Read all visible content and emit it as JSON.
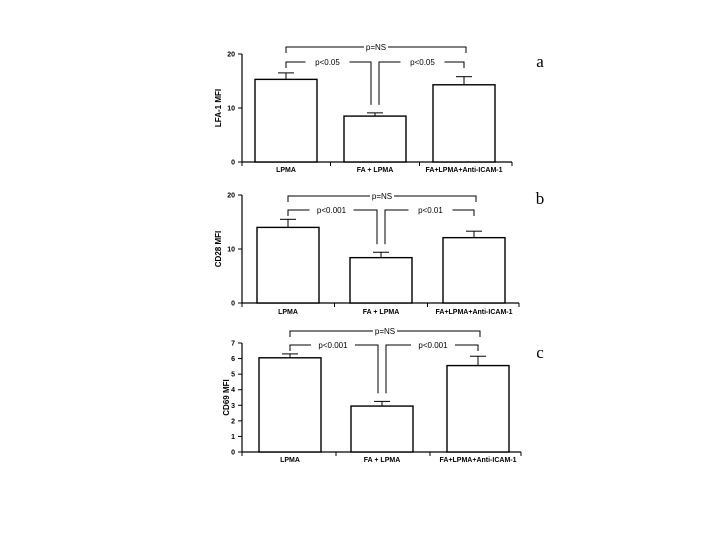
{
  "chart_data": [
    {
      "type": "bar",
      "panel_label": "a",
      "ylabel": "LFA-1 MFI",
      "categories": [
        "LPMA",
        "FA + LPMA",
        "FA+LPMA+Anti-ICAM-1"
      ],
      "values": [
        15.3,
        8.5,
        14.3
      ],
      "errors": [
        1.2,
        0.6,
        1.5
      ],
      "ylim": [
        0,
        20
      ],
      "yticks": [
        "0",
        "10",
        "20"
      ],
      "yticks_values": [
        0,
        10,
        20
      ],
      "significance": [
        {
          "label": "p<0.05",
          "from": 0,
          "to": 1
        },
        {
          "label": "p<0.05",
          "from": 1,
          "to": 2
        },
        {
          "label": "p=NS",
          "from": 0,
          "to": 2
        }
      ]
    },
    {
      "type": "bar",
      "panel_label": "b",
      "ylabel": "CD28 MFI",
      "categories": [
        "LPMA",
        "FA + LPMA",
        "FA+LPMA+Anti-ICAM-1"
      ],
      "values": [
        14.0,
        8.4,
        12.1
      ],
      "errors": [
        1.5,
        1.0,
        1.2
      ],
      "ylim": [
        0,
        20
      ],
      "yticks": [
        "0",
        "10",
        "20"
      ],
      "yticks_values": [
        0,
        10,
        20
      ],
      "significance": [
        {
          "label": "p<0.001",
          "from": 0,
          "to": 1
        },
        {
          "label": "p<0.01",
          "from": 1,
          "to": 2
        },
        {
          "label": "p=NS",
          "from": 0,
          "to": 2
        }
      ]
    },
    {
      "type": "bar",
      "panel_label": "c",
      "ylabel": "CD69 MFI",
      "categories": [
        "LPMA",
        "FA + LPMA",
        "FA+LPMA+Anti-ICAM-1"
      ],
      "values": [
        6.05,
        2.95,
        5.55
      ],
      "errors": [
        0.25,
        0.3,
        0.6
      ],
      "ylim": [
        0,
        7
      ],
      "yticks": [
        "0",
        "1",
        "2",
        "3",
        "4",
        "5",
        "6",
        "7"
      ],
      "yticks_values": [
        0,
        1,
        2,
        3,
        4,
        5,
        6,
        7
      ],
      "significance": [
        {
          "label": "p<0.001",
          "from": 0,
          "to": 1
        },
        {
          "label": "p<0.001",
          "from": 1,
          "to": 2
        },
        {
          "label": "p=NS",
          "from": 0,
          "to": 2
        }
      ]
    }
  ]
}
